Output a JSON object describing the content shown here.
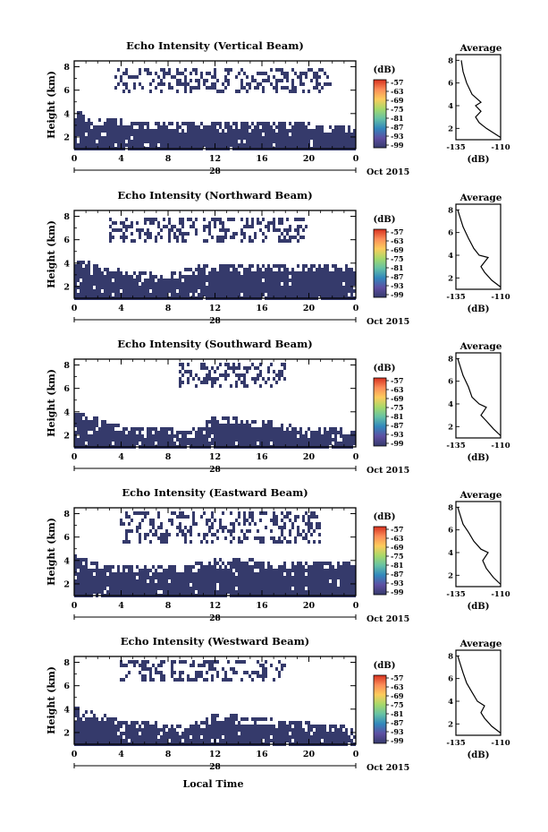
{
  "figure": {
    "xlabel": "Local Time",
    "colorbar_unit": "(dB)",
    "colorbar_ticks": [
      "-57",
      "-63",
      "-69",
      "-75",
      "-81",
      "-87",
      "-93",
      "-99"
    ],
    "avg_title": "Average",
    "avg_xlabel": "(dB)",
    "avg_xticks": [
      "-135",
      "-110"
    ],
    "avg_yticks": [
      "2",
      "4",
      "6",
      "8"
    ],
    "date_label": "Oct 2015",
    "day_label": "28",
    "colors": {
      "fill": "#353a6b",
      "line": "#000000"
    }
  },
  "chart_data": [
    {
      "type": "heatmap",
      "title": "Echo Intensity (Vertical Beam)",
      "ylabel": "Height (km)",
      "xticks": [
        "0",
        "4",
        "8",
        "12",
        "16",
        "20",
        "0"
      ],
      "yticks": [
        "2",
        "4",
        "6",
        "8"
      ],
      "xlim": [
        0,
        24
      ],
      "ylim": [
        1,
        8.5
      ],
      "clim": [
        -99,
        -57
      ],
      "lower_layer": [
        [
          0,
          4.0
        ],
        [
          2,
          3.4
        ],
        [
          4,
          3.2
        ],
        [
          8,
          3.1
        ],
        [
          12,
          3.0
        ],
        [
          16,
          2.9
        ],
        [
          20,
          2.9
        ],
        [
          24,
          2.8
        ]
      ],
      "upper_band": [
        5.6,
        7.8
      ],
      "upper_band_x": [
        3.5,
        22
      ],
      "average_profile": [
        [
          -110,
          1.2
        ],
        [
          -114,
          1.6
        ],
        [
          -118,
          2.0
        ],
        [
          -122,
          2.5
        ],
        [
          -124,
          3.0
        ],
        [
          -121,
          3.5
        ],
        [
          -124,
          4.0
        ],
        [
          -121,
          4.3
        ],
        [
          -126,
          5.0
        ],
        [
          -129,
          6.0
        ],
        [
          -131,
          7.0
        ],
        [
          -132,
          8.0
        ]
      ]
    },
    {
      "type": "heatmap",
      "title": "Echo Intensity (Northward Beam)",
      "ylabel": "Height (km)",
      "xticks": [
        "0",
        "4",
        "8",
        "12",
        "16",
        "20",
        "0"
      ],
      "yticks": [
        "2",
        "4",
        "6",
        "8"
      ],
      "xlim": [
        0,
        24
      ],
      "ylim": [
        1,
        8.5
      ],
      "clim": [
        -99,
        -57
      ],
      "lower_layer": [
        [
          0,
          4.2
        ],
        [
          2,
          3.6
        ],
        [
          4,
          3.2
        ],
        [
          8,
          3.0
        ],
        [
          12,
          3.8
        ],
        [
          16,
          3.7
        ],
        [
          20,
          3.6
        ],
        [
          24,
          3.5
        ]
      ],
      "upper_band": [
        5.8,
        7.8
      ],
      "upper_band_x": [
        3,
        20
      ],
      "average_profile": [
        [
          -110,
          1.2
        ],
        [
          -115,
          1.8
        ],
        [
          -119,
          2.5
        ],
        [
          -121,
          3.0
        ],
        [
          -117,
          3.8
        ],
        [
          -122,
          4.0
        ],
        [
          -125,
          4.6
        ],
        [
          -128,
          5.5
        ],
        [
          -131,
          6.5
        ],
        [
          -133,
          7.5
        ],
        [
          -134,
          8.0
        ]
      ]
    },
    {
      "type": "heatmap",
      "title": "Echo Intensity (Southward Beam)",
      "ylabel": "Height (km)",
      "xticks": [
        "0",
        "4",
        "8",
        "12",
        "16",
        "20",
        "0"
      ],
      "yticks": [
        "2",
        "4",
        "6",
        "8"
      ],
      "xlim": [
        0,
        24
      ],
      "ylim": [
        1,
        8.5
      ],
      "clim": [
        -99,
        -57
      ],
      "lower_layer": [
        [
          0,
          3.8
        ],
        [
          2,
          3.2
        ],
        [
          4,
          2.6
        ],
        [
          8,
          2.3
        ],
        [
          10,
          2.2
        ],
        [
          12,
          3.4
        ],
        [
          16,
          3.0
        ],
        [
          20,
          2.5
        ],
        [
          24,
          2.2
        ]
      ],
      "upper_band": [
        6.2,
        8.2
      ],
      "upper_band_x": [
        9,
        18
      ],
      "average_profile": [
        [
          -110,
          1.2
        ],
        [
          -114,
          1.8
        ],
        [
          -118,
          2.5
        ],
        [
          -121,
          3.0
        ],
        [
          -118,
          3.7
        ],
        [
          -122,
          4.0
        ],
        [
          -126,
          4.6
        ],
        [
          -128,
          5.5
        ],
        [
          -131,
          6.5
        ],
        [
          -133,
          7.5
        ],
        [
          -134,
          8.0
        ]
      ]
    },
    {
      "type": "heatmap",
      "title": "Echo Intensity (Eastward Beam)",
      "ylabel": "Height (km)",
      "xticks": [
        "0",
        "4",
        "8",
        "12",
        "16",
        "20",
        "0"
      ],
      "yticks": [
        "2",
        "4",
        "6",
        "8"
      ],
      "xlim": [
        0,
        24
      ],
      "ylim": [
        1,
        8.5
      ],
      "clim": [
        -99,
        -57
      ],
      "lower_layer": [
        [
          0,
          4.2
        ],
        [
          2,
          3.5
        ],
        [
          4,
          3.2
        ],
        [
          8,
          3.2
        ],
        [
          12,
          3.9
        ],
        [
          16,
          3.8
        ],
        [
          20,
          3.6
        ],
        [
          24,
          3.6
        ]
      ],
      "upper_band": [
        5.5,
        8.2
      ],
      "upper_band_x": [
        4,
        21
      ],
      "average_profile": [
        [
          -110,
          1.2
        ],
        [
          -114,
          1.8
        ],
        [
          -118,
          2.6
        ],
        [
          -120,
          3.3
        ],
        [
          -117,
          4.0
        ],
        [
          -121,
          4.3
        ],
        [
          -125,
          5.0
        ],
        [
          -128,
          5.8
        ],
        [
          -131,
          6.5
        ],
        [
          -133,
          7.5
        ],
        [
          -134,
          8.0
        ]
      ]
    },
    {
      "type": "heatmap",
      "title": "Echo Intensity (Westward Beam)",
      "ylabel": "Height (km)",
      "xticks": [
        "0",
        "4",
        "8",
        "12",
        "16",
        "20",
        "0"
      ],
      "yticks": [
        "2",
        "4",
        "6",
        "8"
      ],
      "xlim": [
        0,
        24
      ],
      "ylim": [
        1,
        8.5
      ],
      "clim": [
        -99,
        -57
      ],
      "lower_layer": [
        [
          0,
          4.0
        ],
        [
          2,
          3.4
        ],
        [
          4,
          2.9
        ],
        [
          8,
          2.5
        ],
        [
          10,
          2.4
        ],
        [
          12,
          3.4
        ],
        [
          16,
          3.0
        ],
        [
          20,
          2.6
        ],
        [
          24,
          2.2
        ]
      ],
      "upper_band": [
        6.5,
        8.2
      ],
      "upper_band_x": [
        4,
        18
      ],
      "average_profile": [
        [
          -110,
          1.2
        ],
        [
          -115,
          1.8
        ],
        [
          -119,
          2.5
        ],
        [
          -121,
          3.0
        ],
        [
          -119,
          3.6
        ],
        [
          -123,
          4.0
        ],
        [
          -126,
          4.8
        ],
        [
          -129,
          5.6
        ],
        [
          -131,
          6.5
        ],
        [
          -133,
          7.5
        ],
        [
          -134,
          8.0
        ]
      ]
    }
  ]
}
